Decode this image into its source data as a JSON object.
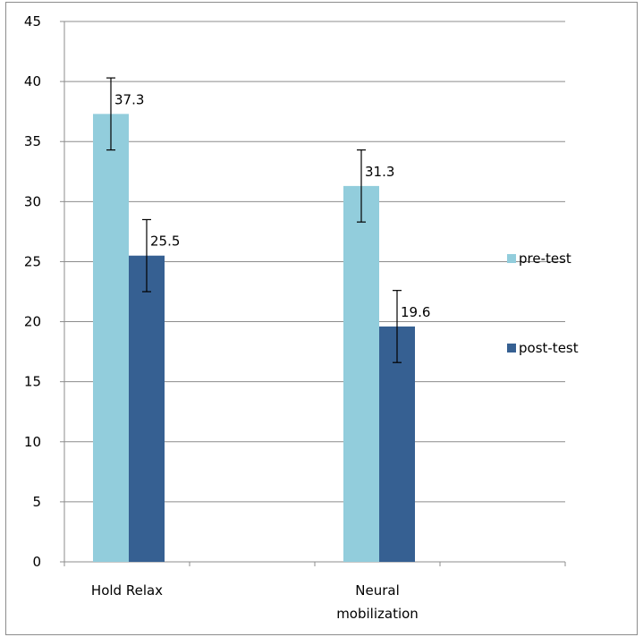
{
  "chart_data": {
    "type": "bar",
    "title": "",
    "xlabel": "",
    "ylabel": "",
    "categories": [
      "Hold Relax",
      "Neural\nmobilization"
    ],
    "category_lines": [
      [
        "Hold Relax"
      ],
      [
        "Neural",
        "mobilization"
      ]
    ],
    "series": [
      {
        "name": "pre-test",
        "values": [
          37.3,
          31.3
        ],
        "error": [
          3.0,
          3.0
        ],
        "color": "#92cddc"
      },
      {
        "name": "post-test",
        "values": [
          25.5,
          19.6
        ],
        "error": [
          3.0,
          3.0
        ],
        "color": "#366092"
      }
    ],
    "data_labels": [
      "37.3",
      "25.5",
      "31.3",
      "19.6"
    ],
    "ylim": [
      0,
      45
    ],
    "yticks": [
      0,
      5,
      10,
      15,
      20,
      25,
      30,
      35,
      40,
      45
    ],
    "grid": true,
    "legend_position": "right"
  }
}
